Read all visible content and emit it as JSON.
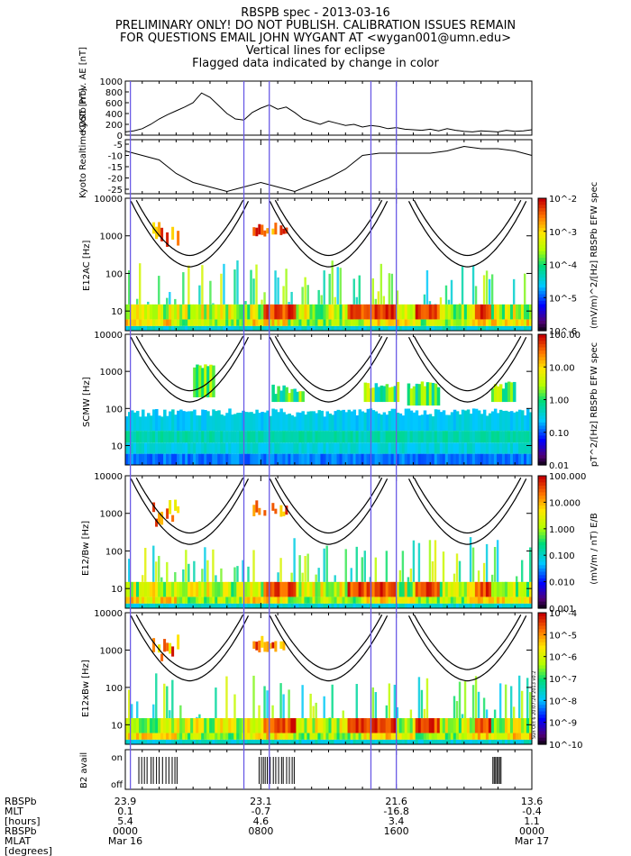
{
  "header": {
    "title": "RBSPB spec - 2013-03-16",
    "line2": "PRELIMINARY ONLY! DO NOT PUBLISH. CALIBRATION ISSUES REMAIN",
    "line3": "FOR QUESTIONS EMAIL JOHN WYGANT AT <wygan001@umn.edu>",
    "line4": "Vertical lines for eclipse",
    "line5": "Flagged data indicated by change in color"
  },
  "colors": {
    "eclipse_line": "#6b5be6",
    "orbit_curve": "#000000"
  },
  "stamp": "Sun Oct 6 20:07:24 2013 v0.2",
  "chart_data": [
    {
      "type": "line",
      "ylabel": "Kyoto Prov. AE [nT]",
      "ylim": [
        0,
        1000
      ],
      "yticks": [
        "0",
        "200",
        "400",
        "600",
        "800",
        "1000"
      ],
      "x": [
        0,
        0.5,
        1,
        1.5,
        2,
        2.5,
        3,
        3.5,
        4,
        4.5,
        5,
        5.5,
        6,
        6.5,
        7,
        7.5,
        8,
        8.5,
        9,
        9.5,
        10,
        10.5,
        11,
        11.5,
        12,
        12.5,
        13,
        13.5,
        14,
        14.5,
        15,
        15.5,
        16,
        16.5,
        17,
        17.5,
        18,
        18.5,
        19,
        19.5,
        20,
        20.5,
        21,
        21.5,
        22,
        22.5,
        23,
        23.5,
        24
      ],
      "values": [
        60,
        80,
        120,
        200,
        300,
        380,
        450,
        520,
        600,
        780,
        700,
        550,
        400,
        300,
        280,
        420,
        500,
        560,
        480,
        520,
        420,
        300,
        250,
        200,
        260,
        220,
        180,
        200,
        150,
        180,
        160,
        120,
        140,
        110,
        100,
        90,
        110,
        80,
        120,
        90,
        70,
        60,
        80,
        70,
        60,
        90,
        70,
        80,
        100
      ]
    },
    {
      "type": "line",
      "ylabel": "Kyoto Realtime DST [nT]",
      "ylim": [
        -27,
        -3
      ],
      "yticks": [
        "-25",
        "-20",
        "-15",
        "-10",
        "-5"
      ],
      "x": [
        0,
        1,
        2,
        3,
        4,
        5,
        6,
        7,
        8,
        9,
        10,
        11,
        12,
        13,
        14,
        15,
        16,
        17,
        18,
        19,
        20,
        21,
        22,
        23,
        24
      ],
      "values": [
        -8,
        -10,
        -12,
        -18,
        -22,
        -24,
        -26,
        -24,
        -22,
        -24,
        -26,
        -23,
        -20,
        -16,
        -10,
        -9,
        -9,
        -9,
        -9,
        -8,
        -6,
        -7,
        -7,
        -8,
        -10
      ]
    },
    {
      "type": "heatmap",
      "ylabel": "E12AC [Hz]",
      "yscale": "log",
      "ylim": [
        3,
        10000
      ],
      "yticks": [
        "10",
        "100",
        "1000",
        "10000"
      ],
      "colorbar_label": "(mV/m)^2/[Hz] RBSPb EFW spec",
      "colorbar_ticks": [
        "10^-6",
        "10^-5",
        "10^-4",
        "10^-3",
        "10^-2"
      ]
    },
    {
      "type": "heatmap",
      "ylabel": "SCMW [Hz]",
      "yscale": "log",
      "ylim": [
        3,
        10000
      ],
      "yticks": [
        "10",
        "100",
        "1000",
        "10000"
      ],
      "colorbar_label": "pT^2/[Hz] RBSPb EFW spec",
      "colorbar_ticks": [
        "0.01",
        "0.10",
        "1.00",
        "10.00",
        "100.00"
      ]
    },
    {
      "type": "heatmap",
      "ylabel": "E12/Bw [Hz]",
      "yscale": "log",
      "ylim": [
        3,
        10000
      ],
      "yticks": [
        "10",
        "100",
        "1000",
        "10000"
      ],
      "colorbar_label": "(mV/m / nT) E/B",
      "colorbar_ticks": [
        "0.001",
        "0.010",
        "0.100",
        "1.000",
        "10.000",
        "100.000"
      ]
    },
    {
      "type": "heatmap",
      "ylabel": "E12xBw [Hz]",
      "yscale": "log",
      "ylim": [
        3,
        10000
      ],
      "yticks": [
        "10",
        "100",
        "1000",
        "10000"
      ],
      "colorbar_ticks": [
        "10^-10",
        "10^-9",
        "10^-8",
        "10^-7",
        "10^-6",
        "10^-5",
        "10^-4"
      ]
    },
    {
      "type": "bar",
      "ylabel": "B2 avail",
      "yticks": [
        "on",
        "off"
      ]
    }
  ],
  "eclipse_hours": [
    0.3,
    7.0,
    8.5,
    14.5,
    16.0
  ],
  "orbit_labels": {
    "rows": [
      "RBSPb",
      "MLT",
      "[hours]",
      "RBSPb",
      "MLAT",
      "[degrees]"
    ],
    "columns": [
      {
        "mlt": "23.9",
        "mlat": "0.1",
        "l": "5.4",
        "time": "0000",
        "date": "Mar 16"
      },
      {
        "mlt": "23.1",
        "mlat": "-0.7",
        "l": "4.6",
        "time": "0800",
        "date": ""
      },
      {
        "mlt": "21.6",
        "mlat": "-16.8",
        "l": "3.4",
        "time": "1600",
        "date": ""
      },
      {
        "mlt": "13.6",
        "mlat": "-0.4",
        "l": "1.1",
        "time": "0000",
        "date": "Mar 17"
      }
    ]
  }
}
